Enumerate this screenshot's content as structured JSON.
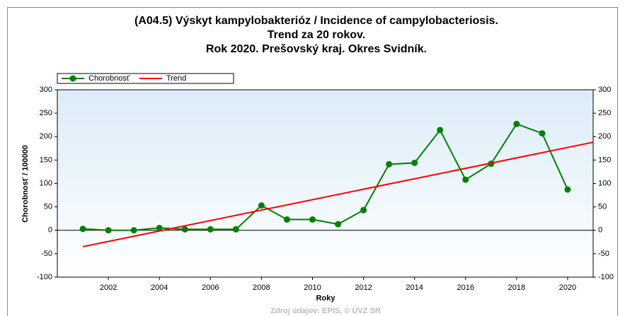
{
  "chart_data": {
    "type": "line",
    "title": [
      "(A04.5) Výskyt kampylobakterióz / Incidence of campylobacteriosis.",
      "Trend za 20 rokov.",
      "Rok 2020. Prešovský kraj. Okres Svidník."
    ],
    "x_label": "Roky",
    "y_label": "Chorobnosť / 100000",
    "source": "Zdroj údajov: EPIS, © ÚVZ SR",
    "series": [
      {
        "name": "Chorobnosť",
        "color": "#008000",
        "marker": true,
        "x": [
          2001,
          2002,
          2003,
          2004,
          2005,
          2006,
          2007,
          2008,
          2009,
          2010,
          2011,
          2012,
          2013,
          2014,
          2015,
          2016,
          2017,
          2018,
          2019,
          2020
        ],
        "values": [
          3,
          0,
          0,
          5,
          2,
          2,
          2,
          53,
          23,
          23,
          13,
          43,
          141,
          144,
          214,
          108,
          142,
          227,
          207,
          87
        ]
      },
      {
        "name": "Trend",
        "color": "#ff0000",
        "marker": false,
        "x": [
          2001,
          2021
        ],
        "values": [
          -35,
          188
        ]
      }
    ],
    "xlim": [
      2000,
      2021
    ],
    "xticks": [
      2002,
      2004,
      2006,
      2008,
      2010,
      2012,
      2014,
      2016,
      2018,
      2020
    ],
    "ylim": [
      -100,
      300
    ],
    "yticks": [
      -100,
      -50,
      0,
      50,
      100,
      150,
      200,
      250,
      300
    ],
    "y2lim": [
      -100,
      300
    ],
    "y2ticks": [
      -100,
      -50,
      0,
      50,
      100,
      150,
      200,
      250,
      300
    ],
    "legend": "top-left"
  }
}
